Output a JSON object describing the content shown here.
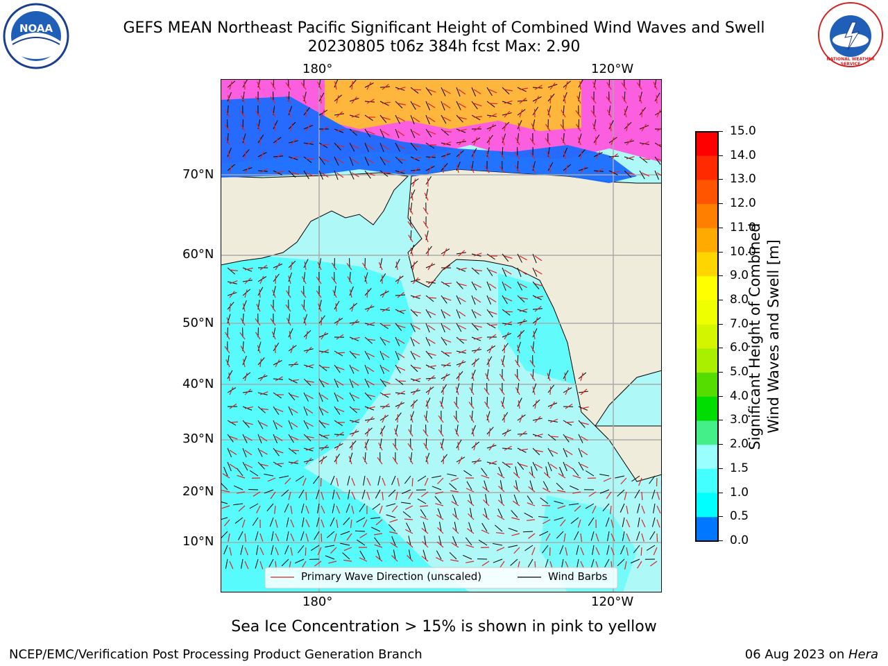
{
  "header": {
    "title_line1": "GEFS MEAN Northeast Pacific Significant Height of Combined Wind Waves and Swell",
    "title_line2": "20230805 t06z 384h fcst   Max: 2.90"
  },
  "logos": {
    "left_text": "NOAA",
    "right_text": "NATIONAL WEATHER SERVICE"
  },
  "map": {
    "lon_labels_top": [
      "180°",
      "120°W"
    ],
    "lon_labels_bottom": [
      "180°",
      "120°W"
    ],
    "lat_labels": [
      "70°N",
      "60°N",
      "50°N",
      "40°N",
      "30°N",
      "20°N",
      "10°N"
    ]
  },
  "legend": {
    "wave_label": "Primary Wave Direction (unscaled)",
    "wind_label": "Wind Barbs",
    "wave_color": "#dd2222",
    "wind_color": "#000000"
  },
  "colorbar": {
    "title_line1": "Significant Height of Combined",
    "title_line2": "Wind Waves and Swell [m]",
    "ticks": [
      "15.0",
      "14.0",
      "13.0",
      "12.0",
      "11.0",
      "10.0",
      "9.0",
      "8.0",
      "7.0",
      "6.0",
      "5.0",
      "4.0",
      "3.0",
      "2.0",
      "1.5",
      "1.0",
      "0.5",
      "0.0"
    ],
    "colors": [
      "#ff0000",
      "#ff2a00",
      "#ff5500",
      "#ff8000",
      "#ffaa00",
      "#ffd500",
      "#ffff00",
      "#eeff00",
      "#d4f500",
      "#aaee00",
      "#55dd00",
      "#00dd00",
      "#44ee88",
      "#99ffff",
      "#44ffff",
      "#00ffff",
      "#0077ff",
      "#0000ff"
    ]
  },
  "notes": {
    "ice_note": "Sea Ice Concentration > 15% is shown in pink to yellow"
  },
  "footer": {
    "left": "NCEP/EMC/Verification Post Processing Product Generation Branch",
    "right_prefix": "06 Aug 2023 on ",
    "right_machine": "Hera"
  }
}
